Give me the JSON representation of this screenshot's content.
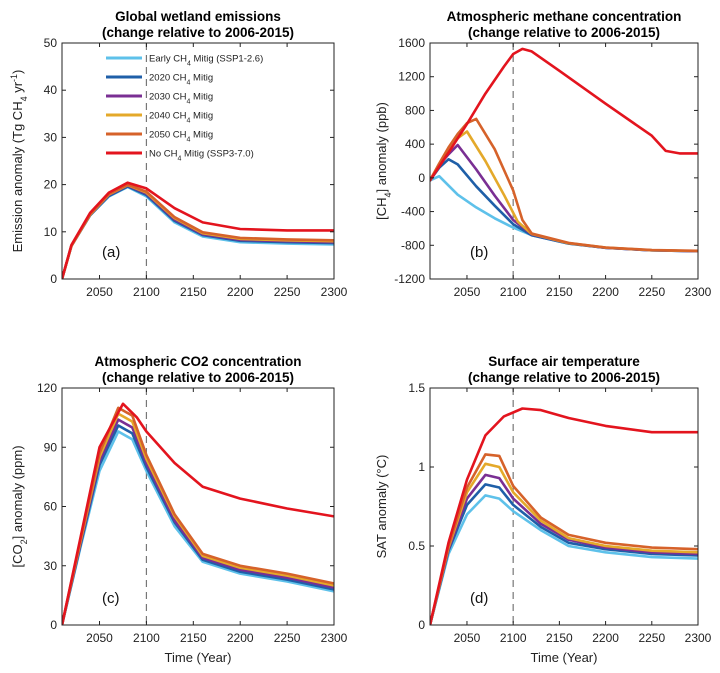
{
  "colors": {
    "early": "#5ec1ea",
    "m2020": "#1f5fa8",
    "m2030": "#7a2f93",
    "m2040": "#e4a92a",
    "m2050": "#d6622a",
    "none": "#e3141e",
    "dash": "#777777"
  },
  "legend": [
    {
      "key": "early",
      "label": "Early CH",
      "sub": "4",
      "tail": " Mitig (SSP1-2.6)"
    },
    {
      "key": "m2020",
      "label": "2020 CH",
      "sub": "4",
      "tail": " Mitig"
    },
    {
      "key": "m2030",
      "label": "2030 CH",
      "sub": "4",
      "tail": " Mitig"
    },
    {
      "key": "m2040",
      "label": "2040 CH",
      "sub": "4",
      "tail": " Mitig"
    },
    {
      "key": "m2050",
      "label": "2050 CH",
      "sub": "4",
      "tail": " Mitig"
    },
    {
      "key": "none",
      "label": "No CH",
      "sub": "4",
      "tail": " Mitig (SSP3-7.0)"
    }
  ],
  "chart_data": [
    {
      "type": "line",
      "panel_label": "(a)",
      "title": "Global wetland emissions",
      "subtitle": "(change relative to 2006-2015)",
      "ylabel": {
        "pre": "Emission anomaly (Tg CH",
        "sub": "4",
        "mid": " yr",
        "sup": "-1",
        "post": ")"
      },
      "xlabel": "",
      "xlim": [
        2010,
        2300
      ],
      "ylim": [
        0,
        50
      ],
      "xticks": [
        "2050",
        "2100",
        "2150",
        "2200",
        "2250",
        "2300"
      ],
      "xtick_values": [
        2050,
        2100,
        2150,
        2200,
        2250,
        2300
      ],
      "yticks": [
        "0",
        "10",
        "20",
        "30",
        "40",
        "50"
      ],
      "ytick_values": [
        0,
        10,
        20,
        30,
        40,
        50
      ],
      "dashed_x": 2100,
      "series": [
        {
          "key": "early",
          "x": [
            2010,
            2020,
            2040,
            2060,
            2080,
            2100,
            2130,
            2160,
            2200,
            2250,
            2300
          ],
          "y": [
            0,
            7,
            13.5,
            17.5,
            19.5,
            17.5,
            12,
            9,
            7.8,
            7.5,
            7.3
          ]
        },
        {
          "key": "m2020",
          "x": [
            2010,
            2020,
            2040,
            2060,
            2080,
            2100,
            2130,
            2160,
            2200,
            2250,
            2300
          ],
          "y": [
            0,
            7,
            13.5,
            17.6,
            19.6,
            17.8,
            12.3,
            9.3,
            8.1,
            7.8,
            7.6
          ]
        },
        {
          "key": "m2030",
          "x": [
            2010,
            2020,
            2040,
            2060,
            2080,
            2100,
            2130,
            2160,
            2200,
            2250,
            2300
          ],
          "y": [
            0,
            7,
            13.6,
            17.8,
            19.8,
            18.1,
            12.6,
            9.5,
            8.3,
            8,
            7.8
          ]
        },
        {
          "key": "m2040",
          "x": [
            2010,
            2020,
            2040,
            2060,
            2080,
            2100,
            2130,
            2160,
            2200,
            2250,
            2300
          ],
          "y": [
            0,
            7,
            13.6,
            17.9,
            19.9,
            18.3,
            12.9,
            9.7,
            8.5,
            8.2,
            8
          ]
        },
        {
          "key": "m2050",
          "x": [
            2010,
            2020,
            2040,
            2060,
            2080,
            2100,
            2130,
            2160,
            2200,
            2250,
            2300
          ],
          "y": [
            0,
            7,
            13.7,
            18,
            20,
            18.5,
            13.1,
            9.9,
            8.7,
            8.4,
            8.2
          ]
        },
        {
          "key": "none",
          "x": [
            2010,
            2020,
            2040,
            2060,
            2080,
            2100,
            2130,
            2160,
            2200,
            2250,
            2300
          ],
          "y": [
            0,
            7.2,
            14,
            18.3,
            20.4,
            19.2,
            15,
            12,
            10.6,
            10.3,
            10.3
          ]
        }
      ]
    },
    {
      "type": "line",
      "panel_label": "(b)",
      "title": "Atmospheric methane concentration",
      "subtitle": "(change relative to 2006-2015)",
      "ylabel": {
        "pre": "[CH",
        "sub": "4",
        "post": "] anomaly (ppb)"
      },
      "xlabel": "",
      "xlim": [
        2010,
        2300
      ],
      "ylim": [
        -1200,
        1600
      ],
      "xticks": [
        "2050",
        "2100",
        "2150",
        "2200",
        "2250",
        "2300"
      ],
      "xtick_values": [
        2050,
        2100,
        2150,
        2200,
        2250,
        2300
      ],
      "yticks": [
        "-1200",
        "-800",
        "-400",
        "0",
        "400",
        "800",
        "1200",
        "1600"
      ],
      "ytick_values": [
        -1200,
        -800,
        -400,
        0,
        400,
        800,
        1200,
        1600
      ],
      "dashed_x": 2100,
      "series": [
        {
          "key": "early",
          "x": [
            2010,
            2020,
            2040,
            2060,
            2080,
            2100,
            2120,
            2160,
            2200,
            2250,
            2300
          ],
          "y": [
            -30,
            20,
            -200,
            -350,
            -480,
            -590,
            -680,
            -780,
            -830,
            -860,
            -870
          ]
        },
        {
          "key": "m2020",
          "x": [
            2010,
            2020,
            2030,
            2040,
            2060,
            2080,
            2100,
            2120,
            2160,
            2200,
            2250,
            2300
          ],
          "y": [
            -30,
            120,
            220,
            160,
            -100,
            -330,
            -550,
            -680,
            -780,
            -830,
            -860,
            -870
          ]
        },
        {
          "key": "m2030",
          "x": [
            2010,
            2020,
            2030,
            2040,
            2060,
            2080,
            2100,
            2120,
            2160,
            2200,
            2250,
            2300
          ],
          "y": [
            -30,
            150,
            280,
            390,
            100,
            -210,
            -500,
            -670,
            -775,
            -830,
            -860,
            -870
          ]
        },
        {
          "key": "m2040",
          "x": [
            2010,
            2020,
            2030,
            2040,
            2050,
            2070,
            2090,
            2105,
            2120,
            2160,
            2200,
            2250,
            2300
          ],
          "y": [
            -30,
            160,
            330,
            470,
            550,
            200,
            -200,
            -520,
            -665,
            -775,
            -828,
            -858,
            -868
          ]
        },
        {
          "key": "m2050",
          "x": [
            2010,
            2020,
            2030,
            2040,
            2050,
            2060,
            2080,
            2100,
            2110,
            2120,
            2160,
            2200,
            2250,
            2300
          ],
          "y": [
            -30,
            170,
            360,
            520,
            650,
            700,
            340,
            -150,
            -500,
            -660,
            -772,
            -826,
            -856,
            -866
          ]
        },
        {
          "key": "none",
          "x": [
            2010,
            2030,
            2050,
            2070,
            2090,
            2100,
            2110,
            2120,
            2150,
            2200,
            2250,
            2265,
            2280,
            2300
          ],
          "y": [
            -30,
            300,
            640,
            1000,
            1320,
            1470,
            1530,
            1500,
            1270,
            880,
            500,
            320,
            290,
            290
          ]
        }
      ]
    },
    {
      "type": "line",
      "panel_label": "(c)",
      "title": "Atmospheric CO2 concentration",
      "subtitle": "(change relative to 2006-2015)",
      "ylabel": {
        "pre": "[CO",
        "sub": "2",
        "post": "] anomaly (ppm)"
      },
      "xlabel": "Time (Year)",
      "xlim": [
        2010,
        2300
      ],
      "ylim": [
        0,
        120
      ],
      "xticks": [
        "2050",
        "2100",
        "2150",
        "2200",
        "2250",
        "2300"
      ],
      "xtick_values": [
        2050,
        2100,
        2150,
        2200,
        2250,
        2300
      ],
      "yticks": [
        "0",
        "30",
        "60",
        "90",
        "120"
      ],
      "ytick_values": [
        0,
        30,
        60,
        90,
        120
      ],
      "dashed_x": 2100,
      "series": [
        {
          "key": "early",
          "x": [
            2010,
            2030,
            2050,
            2070,
            2085,
            2100,
            2130,
            2160,
            2200,
            2250,
            2300
          ],
          "y": [
            0,
            40,
            78,
            98,
            94,
            78,
            50,
            32,
            26,
            22,
            17
          ]
        },
        {
          "key": "m2020",
          "x": [
            2010,
            2030,
            2050,
            2070,
            2085,
            2100,
            2130,
            2160,
            2200,
            2250,
            2300
          ],
          "y": [
            0,
            41,
            81,
            101,
            97,
            80,
            52,
            33,
            27,
            23,
            18
          ]
        },
        {
          "key": "m2030",
          "x": [
            2010,
            2030,
            2050,
            2070,
            2085,
            2100,
            2130,
            2160,
            2200,
            2250,
            2300
          ],
          "y": [
            0,
            42,
            83,
            104,
            100,
            82,
            53,
            34,
            28,
            24,
            19
          ]
        },
        {
          "key": "m2040",
          "x": [
            2010,
            2030,
            2050,
            2070,
            2085,
            2100,
            2130,
            2160,
            2200,
            2250,
            2300
          ],
          "y": [
            0,
            43,
            85,
            107,
            103,
            84,
            55,
            35,
            29,
            25,
            20
          ]
        },
        {
          "key": "m2050",
          "x": [
            2010,
            2030,
            2050,
            2070,
            2085,
            2100,
            2130,
            2160,
            2200,
            2250,
            2300
          ],
          "y": [
            0,
            44,
            87,
            110,
            106,
            86,
            56,
            36,
            30,
            26,
            21
          ]
        },
        {
          "key": "none",
          "x": [
            2010,
            2030,
            2050,
            2075,
            2090,
            2100,
            2130,
            2160,
            2200,
            2250,
            2300
          ],
          "y": [
            0,
            45,
            90,
            112,
            105,
            98,
            82,
            70,
            64,
            59,
            55
          ]
        }
      ]
    },
    {
      "type": "line",
      "panel_label": "(d)",
      "title": "Surface air temperature",
      "subtitle": "(change relative to 2006-2015)",
      "ylabel": {
        "pre": "SAT anomaly (°C)"
      },
      "xlabel": "Time (Year)",
      "xlim": [
        2010,
        2300
      ],
      "ylim": [
        0,
        1.5
      ],
      "xticks": [
        "2050",
        "2100",
        "2150",
        "2200",
        "2250",
        "2300"
      ],
      "xtick_values": [
        2050,
        2100,
        2150,
        2200,
        2250,
        2300
      ],
      "yticks": [
        "0",
        "0.5",
        "1",
        "1.5"
      ],
      "ytick_values": [
        0,
        0.5,
        1,
        1.5
      ],
      "dashed_x": 2100,
      "series": [
        {
          "key": "early",
          "x": [
            2010,
            2030,
            2050,
            2070,
            2085,
            2100,
            2130,
            2160,
            2200,
            2250,
            2300
          ],
          "y": [
            0,
            0.45,
            0.7,
            0.82,
            0.8,
            0.72,
            0.6,
            0.5,
            0.46,
            0.43,
            0.42
          ]
        },
        {
          "key": "m2020",
          "x": [
            2010,
            2030,
            2050,
            2070,
            2085,
            2100,
            2130,
            2160,
            2200,
            2250,
            2300
          ],
          "y": [
            0,
            0.47,
            0.76,
            0.89,
            0.87,
            0.76,
            0.62,
            0.52,
            0.48,
            0.45,
            0.44
          ]
        },
        {
          "key": "m2030",
          "x": [
            2010,
            2030,
            2050,
            2070,
            2085,
            2100,
            2130,
            2160,
            2200,
            2250,
            2300
          ],
          "y": [
            0,
            0.48,
            0.8,
            0.95,
            0.93,
            0.8,
            0.64,
            0.54,
            0.49,
            0.46,
            0.45
          ]
        },
        {
          "key": "m2040",
          "x": [
            2010,
            2030,
            2050,
            2070,
            2085,
            2100,
            2130,
            2160,
            2200,
            2250,
            2300
          ],
          "y": [
            0,
            0.49,
            0.84,
            1.02,
            1.0,
            0.84,
            0.66,
            0.55,
            0.5,
            0.47,
            0.46
          ]
        },
        {
          "key": "m2050",
          "x": [
            2010,
            2030,
            2050,
            2070,
            2085,
            2100,
            2130,
            2160,
            2200,
            2250,
            2300
          ],
          "y": [
            0,
            0.5,
            0.87,
            1.08,
            1.07,
            0.88,
            0.68,
            0.57,
            0.52,
            0.49,
            0.48
          ]
        },
        {
          "key": "none",
          "x": [
            2010,
            2030,
            2050,
            2070,
            2090,
            2110,
            2130,
            2160,
            2200,
            2250,
            2300
          ],
          "y": [
            0,
            0.52,
            0.92,
            1.2,
            1.32,
            1.37,
            1.36,
            1.31,
            1.26,
            1.22,
            1.22
          ]
        }
      ]
    }
  ]
}
